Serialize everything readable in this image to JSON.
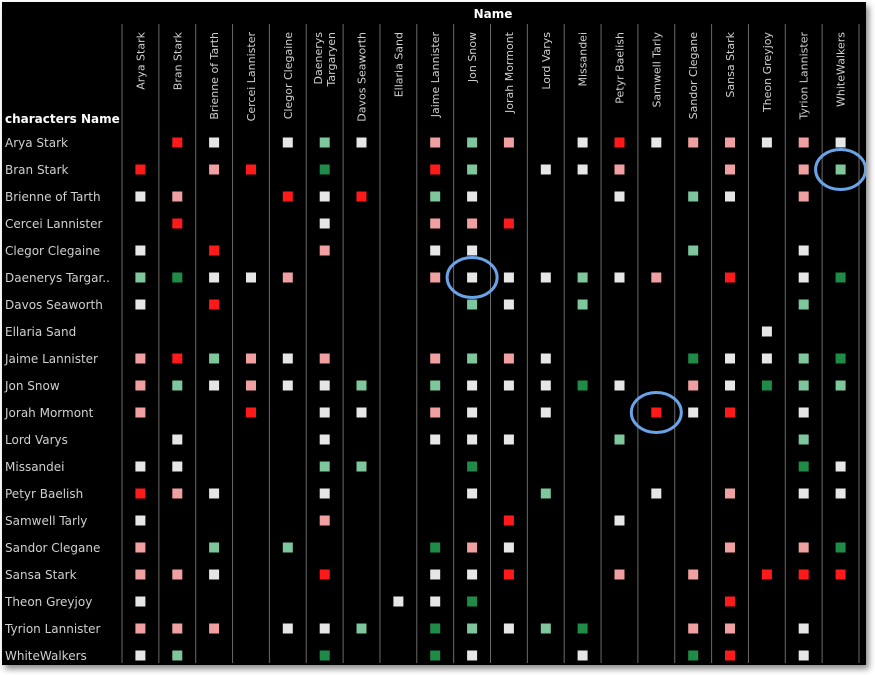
{
  "chart_data": {
    "type": "heatmap",
    "title": "Name",
    "row_header": "characters Name",
    "columns": [
      "Arya Stark",
      "Bran Stark",
      "Brienne of Tarth",
      "Cercei Lannister",
      "Clegor Clegaine",
      "Daenerys Targaryen",
      "Davos Seaworth",
      "Ellaria Sand",
      "Jaime Lannister",
      "Jon Snow",
      "Jorah Mormont",
      "Lord Varys",
      "Missandei",
      "Petyr Baelish",
      "Samwell Tarly",
      "Sandor Clegane",
      "Sansa Stark",
      "Theon Greyjoy",
      "Tyrion Lannister",
      "WhiteWalkers"
    ],
    "column_labels": [
      [
        "Arya Stark"
      ],
      [
        "Bran Stark"
      ],
      [
        "Brienne of Tarth"
      ],
      [
        "Cercei Lannister"
      ],
      [
        "Clegor Clegaine"
      ],
      [
        "Daenerys",
        "Targaryen"
      ],
      [
        "Davos Seaworth"
      ],
      [
        "Ellaria Sand"
      ],
      [
        "Jaime Lannister"
      ],
      [
        "Jon Snow"
      ],
      [
        "Jorah Mormont"
      ],
      [
        "Lord Varys"
      ],
      [
        "Missandei"
      ],
      [
        "Petyr Baelish"
      ],
      [
        "Samwell Tarly"
      ],
      [
        "Sandor Clegane"
      ],
      [
        "Sansa Stark"
      ],
      [
        "Theon Greyjoy"
      ],
      [
        "Tyrion Lannister"
      ],
      [
        "WhiteWalkers"
      ]
    ],
    "rows": [
      "Arya Stark",
      "Bran Stark",
      "Brienne of Tarth",
      "Cercei Lannister",
      "Clegor Clegaine",
      "Daenerys Targar..",
      "Davos Seaworth",
      "Ellaria Sand",
      "Jaime Lannister",
      "Jon Snow",
      "Jorah Mormont",
      "Lord Varys",
      "Missandei",
      "Petyr Baelish",
      "Samwell Tarly",
      "Sandor Clegane",
      "Sansa Stark",
      "Theon Greyjoy",
      "Tyrion Lannister",
      "WhiteWalkers"
    ],
    "color_scale": {
      "W": "#e6e6e6",
      "r": "#f0a0a0",
      "R": "#ff1a1a",
      "g": "#7ec79c",
      "G": "#1e8c47"
    },
    "cells": [
      [
        "",
        "R",
        "W",
        "",
        "W",
        "g",
        "W",
        "",
        "r",
        "g",
        "r",
        "",
        "W",
        "R",
        "W",
        "r",
        "r",
        "W",
        "r",
        "W"
      ],
      [
        "R",
        "",
        "r",
        "R",
        "",
        "G",
        "",
        "",
        "R",
        "g",
        "",
        "W",
        "W",
        "r",
        "",
        "",
        "r",
        "",
        "r",
        "g"
      ],
      [
        "W",
        "r",
        "",
        "",
        "R",
        "W",
        "R",
        "",
        "g",
        "W",
        "",
        "",
        "",
        "W",
        "",
        "g",
        "W",
        "",
        "r",
        ""
      ],
      [
        "",
        "R",
        "",
        "",
        "",
        "W",
        "",
        "",
        "r",
        "r",
        "R",
        "",
        "",
        "",
        "",
        "",
        "",
        "",
        "",
        ""
      ],
      [
        "W",
        "",
        "R",
        "",
        "",
        "r",
        "",
        "",
        "W",
        "W",
        "",
        "",
        "",
        "",
        "",
        "g",
        "",
        "",
        "W",
        ""
      ],
      [
        "g",
        "G",
        "W",
        "W",
        "r",
        "",
        "",
        "",
        "r",
        "W",
        "W",
        "W",
        "g",
        "W",
        "r",
        "",
        "R",
        "",
        "W",
        "G"
      ],
      [
        "W",
        "",
        "R",
        "",
        "",
        "",
        "",
        "",
        "",
        "g",
        "W",
        "",
        "g",
        "",
        "",
        "",
        "",
        "",
        "g",
        ""
      ],
      [
        "",
        "",
        "",
        "",
        "",
        "",
        "",
        "",
        "",
        "",
        "",
        "",
        "",
        "",
        "",
        "",
        "",
        "W",
        "",
        ""
      ],
      [
        "r",
        "R",
        "g",
        "r",
        "W",
        "r",
        "",
        "",
        "r",
        "g",
        "r",
        "W",
        "",
        "",
        "",
        "G",
        "W",
        "W",
        "g",
        "G"
      ],
      [
        "r",
        "g",
        "W",
        "r",
        "W",
        "W",
        "g",
        "",
        "g",
        "W",
        "W",
        "W",
        "G",
        "W",
        "",
        "r",
        "W",
        "G",
        "g",
        "g"
      ],
      [
        "r",
        "",
        "",
        "R",
        "",
        "W",
        "W",
        "",
        "r",
        "W",
        "",
        "W",
        "",
        "",
        "R",
        "W",
        "R",
        "",
        "W",
        ""
      ],
      [
        "",
        "W",
        "",
        "",
        "",
        "W",
        "",
        "",
        "W",
        "W",
        "W",
        "",
        "",
        "g",
        "",
        "",
        "",
        "",
        "g",
        ""
      ],
      [
        "W",
        "W",
        "",
        "",
        "",
        "g",
        "g",
        "",
        "",
        "G",
        "",
        "",
        "",
        "",
        "",
        "",
        "",
        "",
        "G",
        "W"
      ],
      [
        "R",
        "r",
        "W",
        "",
        "",
        "W",
        "",
        "",
        "",
        "W",
        "",
        "g",
        "",
        "",
        "W",
        "",
        "r",
        "",
        "W",
        "W"
      ],
      [
        "W",
        "",
        "",
        "",
        "",
        "r",
        "",
        "",
        "",
        "",
        "R",
        "",
        "",
        "W",
        "",
        "",
        "",
        "",
        "",
        ""
      ],
      [
        "r",
        "",
        "g",
        "",
        "g",
        "",
        "",
        "",
        "G",
        "r",
        "W",
        "",
        "",
        "",
        "",
        "",
        "r",
        "",
        "r",
        "G"
      ],
      [
        "r",
        "r",
        "W",
        "",
        "",
        "R",
        "",
        "",
        "W",
        "W",
        "R",
        "",
        "",
        "r",
        "",
        "r",
        "",
        "R",
        "R",
        "R"
      ],
      [
        "W",
        "",
        "",
        "",
        "",
        "",
        "",
        "W",
        "W",
        "G",
        "",
        "",
        "",
        "",
        "",
        "",
        "R",
        "",
        "",
        ""
      ],
      [
        "r",
        "r",
        "r",
        "",
        "W",
        "W",
        "g",
        "",
        "G",
        "g",
        "W",
        "g",
        "G",
        "",
        "",
        "r",
        "r",
        "",
        "W",
        ""
      ],
      [
        "W",
        "g",
        "",
        "",
        "",
        "G",
        "",
        "",
        "G",
        "W",
        "",
        "",
        "W",
        "",
        "",
        "G",
        "R",
        "",
        "W",
        ""
      ]
    ],
    "annotations": [
      {
        "type": "circle",
        "row": "Bran Stark",
        "column": "WhiteWalkers"
      },
      {
        "type": "circle",
        "row": "Daenerys Targar..",
        "column": "Jon Snow"
      },
      {
        "type": "circle",
        "row": "Jorah Mormont",
        "column": "Samwell Tarly"
      }
    ],
    "legend": "none"
  }
}
